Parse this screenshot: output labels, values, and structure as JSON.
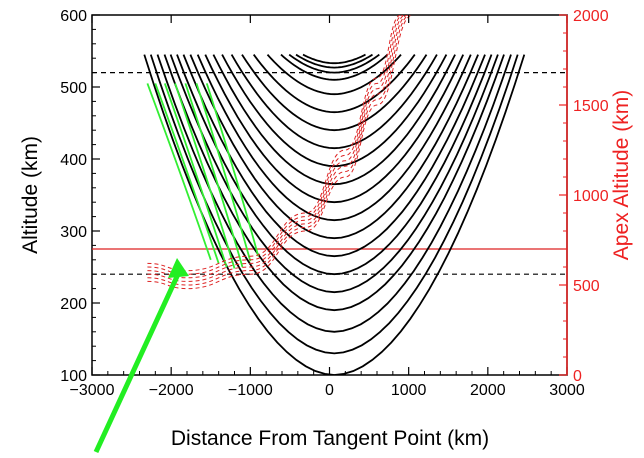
{
  "chart_data": {
    "type": "line",
    "title": "",
    "xlabel": "Distance From Tangent Point (km)",
    "ylabel": "Altitude (km)",
    "y2label": "Apex Altitude (km)",
    "xlim": [
      -3000,
      3000
    ],
    "ylim": [
      100,
      600
    ],
    "y2lim": [
      0,
      2000
    ],
    "xticks": [
      -3000,
      -2000,
      -1000,
      0,
      1000,
      2000,
      3000
    ],
    "yticks": [
      100,
      200,
      300,
      400,
      500,
      600
    ],
    "y2ticks": [
      0,
      500,
      1000,
      1500,
      2000
    ],
    "x_tick_labels": [
      "−3000",
      "−2000",
      "−1000",
      "0",
      "1000",
      "2000",
      "3000"
    ],
    "y_tick_labels": [
      "100",
      "200",
      "300",
      "400",
      "500",
      "600"
    ],
    "y2_tick_labels": [
      "0",
      "500",
      "1000",
      "1500",
      "2000"
    ],
    "grid": false,
    "legend": "none",
    "colors": {
      "black_curves": "#000000",
      "green_curves": "#33ee33",
      "apex_curves": "#dd2222",
      "secondary_axis": "#ee2222",
      "arrow": "#22ee22"
    },
    "reference_lines": [
      {
        "axis": "y",
        "value": 520,
        "style": "dashed",
        "color": "#000000"
      },
      {
        "axis": "y",
        "value": 240,
        "style": "dashed",
        "color": "#000000"
      },
      {
        "axis": "y",
        "value": 275,
        "style": "solid",
        "color": "#dd2222"
      }
    ],
    "black_curve_minima": [
      100,
      130,
      160,
      190,
      215,
      240,
      265,
      290,
      315,
      340,
      365,
      390,
      415,
      440,
      465,
      490,
      510,
      520,
      527,
      533
    ],
    "green_curves": [
      {
        "x_start": -2300,
        "y_start": 505,
        "x_end": -1500,
        "y_end": 260
      },
      {
        "x_start": -2200,
        "y_start": 505,
        "x_end": -1400,
        "y_end": 255
      },
      {
        "x_start": -2080,
        "y_start": 505,
        "x_end": -1300,
        "y_end": 250
      },
      {
        "x_start": -1950,
        "y_start": 505,
        "x_end": -1200,
        "y_end": 248
      },
      {
        "x_start": -1820,
        "y_start": 505,
        "x_end": -1100,
        "y_end": 250
      },
      {
        "x_start": -1680,
        "y_start": 505,
        "x_end": -1000,
        "y_end": 258
      },
      {
        "x_start": -1550,
        "y_start": 505,
        "x_end": -900,
        "y_end": 265
      }
    ],
    "apex_curves_y2": [
      {
        "x": [
          -2300,
          -1800,
          -1000,
          -300,
          200,
          600,
          900
        ],
        "y": [
          620,
          580,
          660,
          900,
          1250,
          1650,
          2000
        ]
      },
      {
        "x": [
          -2300,
          -1800,
          -1000,
          -300,
          200,
          600,
          930
        ],
        "y": [
          600,
          560,
          640,
          880,
          1220,
          1620,
          2000
        ]
      },
      {
        "x": [
          -2300,
          -1800,
          -1000,
          -300,
          200,
          600,
          960
        ],
        "y": [
          580,
          540,
          620,
          860,
          1190,
          1590,
          2000
        ]
      },
      {
        "x": [
          -2300,
          -1800,
          -1000,
          -300,
          200,
          600,
          990
        ],
        "y": [
          560,
          520,
          600,
          840,
          1160,
          1560,
          2000
        ]
      },
      {
        "x": [
          -2300,
          -1800,
          -1000,
          -300,
          200,
          600,
          1020
        ],
        "y": [
          540,
          500,
          580,
          820,
          1130,
          1530,
          2000
        ]
      },
      {
        "x": [
          -2300,
          -1800,
          -1000,
          -300,
          200,
          600,
          1050
        ],
        "y": [
          520,
          480,
          560,
          800,
          1100,
          1500,
          2000
        ]
      }
    ]
  }
}
